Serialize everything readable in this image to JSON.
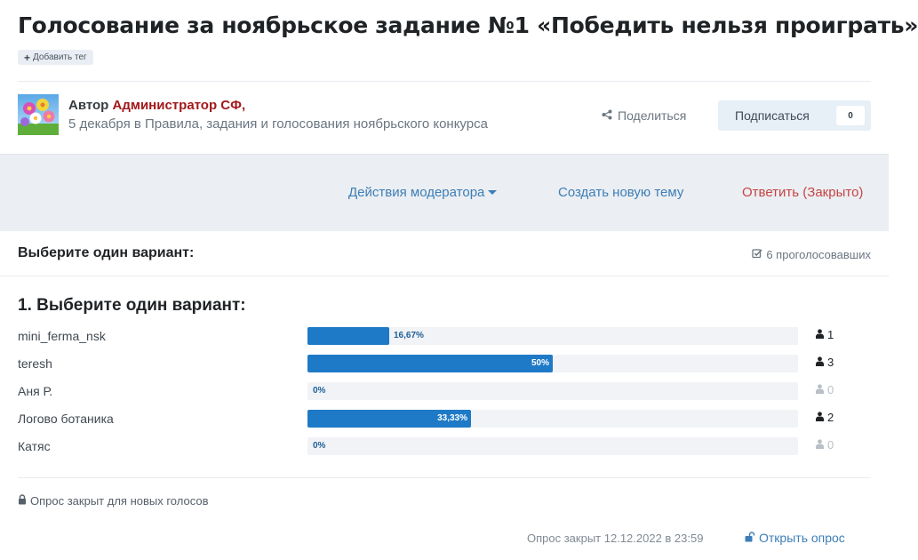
{
  "topic": {
    "title": "Голосование за ноябрьское задание №1 «Победить нельзя проиграть»",
    "add_tag_label": "Добавить тег"
  },
  "author": {
    "prefix": "Автор",
    "name": "Администратор СФ,",
    "meta": "5 декабря в Правила, задания и голосования ноябрьского конкурса"
  },
  "share_label": "Поделиться",
  "follow": {
    "label": "Подписаться",
    "count": "0"
  },
  "actions": {
    "moderator": "Действия модератора",
    "new_topic": "Создать новую тему",
    "reply": "Ответить (Закрыто)"
  },
  "poll": {
    "header": "Выберите один вариант:",
    "voters": "6 проголосовавших",
    "question": "1. Выберите один вариант:",
    "options": [
      {
        "label": "mini_ferma_nsk",
        "percent_text": "16,67%",
        "percent": 16.67,
        "votes": "1"
      },
      {
        "label": "teresh",
        "percent_text": "50%",
        "percent": 50,
        "votes": "3"
      },
      {
        "label": "Аня Р.",
        "percent_text": "0%",
        "percent": 0,
        "votes": "0"
      },
      {
        "label": "Логово ботаника",
        "percent_text": "33,33%",
        "percent": 33.33,
        "votes": "2"
      },
      {
        "label": "Катяс",
        "percent_text": "0%",
        "percent": 0,
        "votes": "0"
      }
    ],
    "closed_note": "Опрос закрыт для новых голосов",
    "closed_at": "Опрос закрыт 12.12.2022 в 23:59",
    "open_label": "Открыть опрос"
  },
  "colors": {
    "bar": "#1e7ac7",
    "link": "#3d7eb7",
    "author": "#a3181a",
    "reply": "#c64444"
  },
  "icons": {
    "add_tag": "plus-icon",
    "share": "share-icon",
    "caret": "caret-down-icon",
    "voters": "checkbox-icon",
    "votes": "user-icon",
    "closed": "lock-icon",
    "open": "unlock-icon"
  }
}
